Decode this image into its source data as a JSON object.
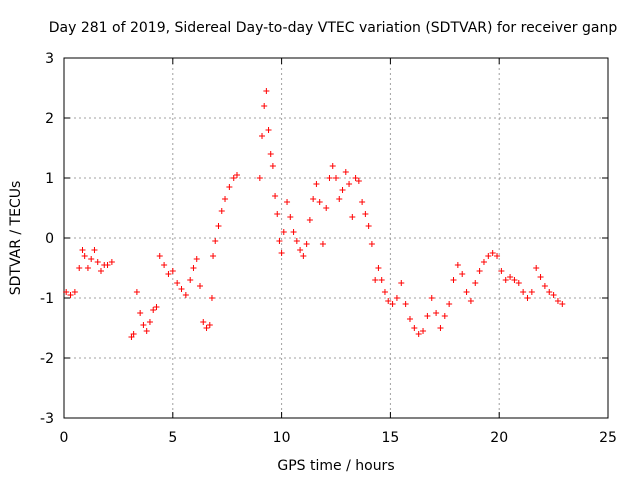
{
  "chart_data": {
    "type": "scatter",
    "title": "Day 281 of 2019, Sidereal Day-to-day VTEC variation (SDTVAR) for receiver ganp",
    "xlabel": "GPS time / hours",
    "ylabel": "SDTVAR / TECUs",
    "xlim": [
      0,
      25
    ],
    "ylim": [
      -3,
      3
    ],
    "xticks": [
      "0",
      "5",
      "10",
      "15",
      "20",
      "25"
    ],
    "yticks": [
      "-3",
      "-2",
      "-1",
      "0",
      "1",
      "2",
      "3"
    ],
    "grid": true,
    "marker": "+",
    "marker_color": "#ff0000",
    "series": [
      {
        "name": "SDTVAR",
        "trace": [
          [
            0.1,
            -0.9
          ],
          [
            0.3,
            -0.95
          ],
          [
            0.5,
            -0.9
          ],
          [
            0.7,
            -0.5
          ],
          [
            0.85,
            -0.2
          ],
          [
            0.95,
            -0.3
          ],
          [
            1.1,
            -0.5
          ],
          [
            1.25,
            -0.35
          ],
          [
            1.4,
            -0.2
          ],
          [
            1.55,
            -0.4
          ],
          [
            1.7,
            -0.55
          ],
          [
            1.85,
            -0.45
          ],
          [
            2.0,
            -0.45
          ],
          [
            2.2,
            -0.4
          ],
          [
            3.1,
            -1.65
          ],
          [
            3.2,
            -1.6
          ],
          [
            3.35,
            -0.9
          ],
          [
            3.5,
            -1.25
          ],
          [
            3.65,
            -1.45
          ],
          [
            3.8,
            -1.55
          ],
          [
            3.95,
            -1.4
          ],
          [
            4.1,
            -1.2
          ],
          [
            4.25,
            -1.15
          ],
          [
            4.4,
            -0.3
          ],
          [
            4.6,
            -0.45
          ],
          [
            4.8,
            -0.6
          ],
          [
            5.0,
            -0.55
          ],
          [
            5.2,
            -0.75
          ],
          [
            5.4,
            -0.85
          ],
          [
            5.6,
            -0.95
          ],
          [
            5.8,
            -0.7
          ],
          [
            5.95,
            -0.5
          ],
          [
            6.1,
            -0.35
          ],
          [
            6.25,
            -0.8
          ],
          [
            6.4,
            -1.4
          ],
          [
            6.55,
            -1.5
          ],
          [
            6.7,
            -1.45
          ],
          [
            6.8,
            -1.0
          ],
          [
            6.85,
            -0.3
          ],
          [
            6.95,
            -0.05
          ],
          [
            7.1,
            0.2
          ],
          [
            7.25,
            0.45
          ],
          [
            7.4,
            0.65
          ],
          [
            7.6,
            0.85
          ],
          [
            7.8,
            1.0
          ],
          [
            7.95,
            1.05
          ],
          [
            9.0,
            1.0
          ],
          [
            9.1,
            1.7
          ],
          [
            9.2,
            2.2
          ],
          [
            9.3,
            2.45
          ],
          [
            9.4,
            1.8
          ],
          [
            9.5,
            1.4
          ],
          [
            9.6,
            1.2
          ],
          [
            9.7,
            0.7
          ],
          [
            9.8,
            0.4
          ],
          [
            9.9,
            -0.05
          ],
          [
            10.0,
            -0.25
          ],
          [
            10.1,
            0.1
          ],
          [
            10.25,
            0.6
          ],
          [
            10.4,
            0.35
          ],
          [
            10.55,
            0.1
          ],
          [
            10.7,
            -0.05
          ],
          [
            10.85,
            -0.2
          ],
          [
            11.0,
            -0.3
          ],
          [
            11.15,
            -0.1
          ],
          [
            11.3,
            0.3
          ],
          [
            11.45,
            0.65
          ],
          [
            11.6,
            0.9
          ],
          [
            11.75,
            0.6
          ],
          [
            11.9,
            -0.1
          ],
          [
            12.05,
            0.5
          ],
          [
            12.2,
            1.0
          ],
          [
            12.35,
            1.2
          ],
          [
            12.5,
            1.0
          ],
          [
            12.65,
            0.65
          ],
          [
            12.8,
            0.8
          ],
          [
            12.95,
            1.1
          ],
          [
            13.1,
            0.9
          ],
          [
            13.25,
            0.35
          ],
          [
            13.4,
            1.0
          ],
          [
            13.55,
            0.95
          ],
          [
            13.7,
            0.6
          ],
          [
            13.85,
            0.4
          ],
          [
            14.0,
            0.2
          ],
          [
            14.15,
            -0.1
          ],
          [
            14.3,
            -0.7
          ],
          [
            14.45,
            -0.5
          ],
          [
            14.6,
            -0.7
          ],
          [
            14.75,
            -0.9
          ],
          [
            14.9,
            -1.05
          ],
          [
            15.1,
            -1.1
          ],
          [
            15.3,
            -1.0
          ],
          [
            15.5,
            -0.75
          ],
          [
            15.7,
            -1.1
          ],
          [
            15.9,
            -1.35
          ],
          [
            16.1,
            -1.5
          ],
          [
            16.3,
            -1.6
          ],
          [
            16.5,
            -1.55
          ],
          [
            16.7,
            -1.3
          ],
          [
            16.9,
            -1.0
          ],
          [
            17.1,
            -1.25
          ],
          [
            17.3,
            -1.5
          ],
          [
            17.5,
            -1.3
          ],
          [
            17.7,
            -1.1
          ],
          [
            17.9,
            -0.7
          ],
          [
            18.1,
            -0.45
          ],
          [
            18.3,
            -0.6
          ],
          [
            18.5,
            -0.9
          ],
          [
            18.7,
            -1.05
          ],
          [
            18.9,
            -0.75
          ],
          [
            19.1,
            -0.55
          ],
          [
            19.3,
            -0.4
          ],
          [
            19.5,
            -0.3
          ],
          [
            19.7,
            -0.25
          ],
          [
            19.9,
            -0.3
          ],
          [
            20.1,
            -0.55
          ],
          [
            20.3,
            -0.7
          ],
          [
            20.5,
            -0.65
          ],
          [
            20.7,
            -0.7
          ],
          [
            20.9,
            -0.75
          ],
          [
            21.1,
            -0.9
          ],
          [
            21.3,
            -1.0
          ],
          [
            21.5,
            -0.9
          ],
          [
            21.7,
            -0.5
          ],
          [
            21.9,
            -0.65
          ],
          [
            22.1,
            -0.8
          ],
          [
            22.3,
            -0.9
          ],
          [
            22.5,
            -0.95
          ],
          [
            22.7,
            -1.05
          ],
          [
            22.9,
            -1.1
          ]
        ]
      }
    ]
  }
}
